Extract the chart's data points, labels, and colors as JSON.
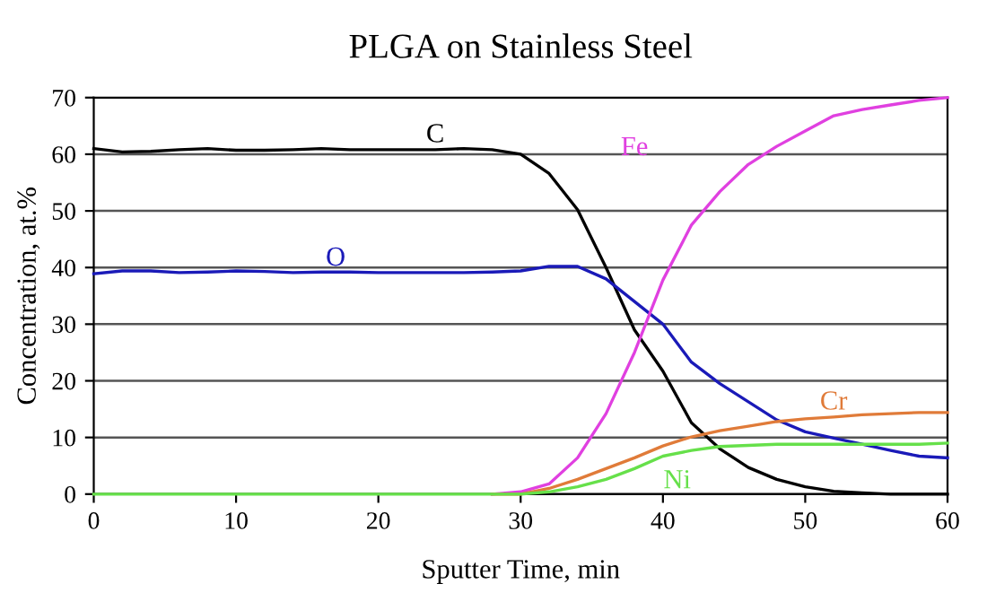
{
  "chart_data": {
    "type": "line",
    "title": "PLGA on Stainless Steel",
    "xlabel": "Sputter Time, min",
    "ylabel": "Concentration, at.%",
    "x": [
      0,
      2,
      4,
      6,
      8,
      10,
      12,
      14,
      16,
      18,
      20,
      22,
      24,
      26,
      28,
      30,
      32,
      34,
      36,
      38,
      40,
      42,
      44,
      46,
      48,
      50,
      52,
      54,
      56,
      58,
      60
    ],
    "series": [
      {
        "name": "C",
        "color": "#000000",
        "values": [
          61,
          60.4,
          60.5,
          60.8,
          61,
          60.7,
          60.7,
          60.8,
          61,
          60.8,
          60.8,
          60.8,
          60.8,
          61,
          60.8,
          60,
          56.6,
          50.2,
          40,
          29,
          21.7,
          12.6,
          8,
          4.7,
          2.6,
          1.3,
          0.5,
          0.2,
          0,
          0,
          0
        ]
      },
      {
        "name": "O",
        "color": "#1a1ab8",
        "values": [
          38.9,
          39.4,
          39.4,
          39.1,
          39.2,
          39.4,
          39.3,
          39.1,
          39.2,
          39.2,
          39.1,
          39.1,
          39.1,
          39.1,
          39.2,
          39.4,
          40.2,
          40.2,
          38,
          34,
          30,
          23.3,
          19.5,
          16.3,
          13.1,
          11,
          9.9,
          8.8,
          7.7,
          6.7,
          6.4
        ]
      },
      {
        "name": "Fe",
        "color": "#e040e0",
        "values": [
          null,
          null,
          null,
          null,
          null,
          null,
          null,
          null,
          null,
          null,
          null,
          null,
          null,
          null,
          0,
          0.4,
          1.8,
          6.4,
          14.2,
          25,
          37.8,
          47.5,
          53.4,
          58.2,
          61.4,
          64.1,
          66.8,
          67.9,
          68.7,
          69.5,
          70
        ]
      },
      {
        "name": "Cr",
        "color": "#e07b39",
        "values": [
          null,
          null,
          null,
          null,
          null,
          null,
          null,
          null,
          null,
          null,
          null,
          null,
          null,
          null,
          0,
          0,
          1,
          2.6,
          4.5,
          6.4,
          8.5,
          10.1,
          11.2,
          12,
          12.8,
          13.3,
          13.6,
          14,
          14.2,
          14.4,
          14.4
        ]
      },
      {
        "name": "Ni",
        "color": "#66e04a",
        "values": [
          0,
          0,
          0,
          0,
          0,
          0,
          0,
          0,
          0,
          0,
          0,
          0,
          0,
          0,
          0,
          0,
          0.4,
          1.3,
          2.6,
          4.5,
          6.7,
          7.7,
          8.4,
          8.6,
          8.8,
          8.8,
          8.8,
          8.8,
          8.8,
          8.8,
          9
        ]
      }
    ],
    "xlim": [
      0,
      60
    ],
    "xticks": [
      0,
      10,
      20,
      30,
      40,
      50,
      60
    ],
    "ylim": [
      0,
      70
    ],
    "yticks": [
      0,
      10,
      20,
      30,
      40,
      50,
      60,
      70
    ],
    "grid": "y",
    "legend": false,
    "marker": "none",
    "line_style": "solid"
  }
}
